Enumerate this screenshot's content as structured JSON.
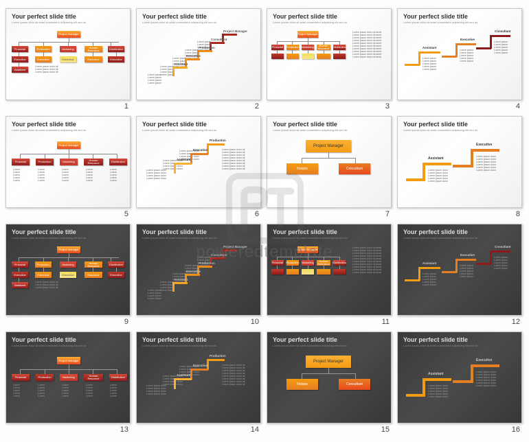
{
  "title": "Your perfect slide title",
  "subtitle": "Lorem ipsum dolor sit amet consectetur adipiscing elit sed do",
  "lorem": "Lorem ipsum dolor sit amet consectetur adipiscing elit sed do eiusmod tempor incididunt ut labore",
  "watermark": "poweredtemplate",
  "colors": {
    "orange": "#f39c12",
    "orange_dark": "#e67e22",
    "orange_grad_a": "#fbb034",
    "orange_grad_b": "#e8491d",
    "red": "#c0392b",
    "red_dark": "#8e1b1b",
    "red_light": "#d94a3a",
    "yellow": "#f1e05a",
    "cream": "#f8e28a"
  },
  "labels": {
    "pm": "Project Manager",
    "exec": "Executive",
    "cons": "Consultant",
    "asst": "Assistant",
    "prod": "Production",
    "notaris": "Notaris",
    "fin": "Financial",
    "mkt": "Marketing",
    "hr": "Human Resource",
    "dist": "Distribution"
  },
  "slides": [
    {
      "n": "1",
      "bg": "light",
      "layout": "org_full"
    },
    {
      "n": "2",
      "bg": "light",
      "layout": "stairs_right"
    },
    {
      "n": "3",
      "bg": "light",
      "layout": "org_text_right"
    },
    {
      "n": "4",
      "bg": "light",
      "layout": "brackets"
    },
    {
      "n": "5",
      "bg": "light",
      "layout": "org_row"
    },
    {
      "n": "6",
      "bg": "light",
      "layout": "stairs_left"
    },
    {
      "n": "7",
      "bg": "light",
      "layout": "big_boxes"
    },
    {
      "n": "8",
      "bg": "light",
      "layout": "brackets_simple"
    },
    {
      "n": "9",
      "bg": "dark",
      "layout": "org_full"
    },
    {
      "n": "10",
      "bg": "dark",
      "layout": "stairs_right"
    },
    {
      "n": "11",
      "bg": "dark",
      "layout": "org_text_right"
    },
    {
      "n": "12",
      "bg": "dark",
      "layout": "brackets"
    },
    {
      "n": "13",
      "bg": "dark",
      "layout": "org_row"
    },
    {
      "n": "14",
      "bg": "dark",
      "layout": "stairs_left"
    },
    {
      "n": "15",
      "bg": "dark",
      "layout": "big_boxes"
    },
    {
      "n": "16",
      "bg": "dark",
      "layout": "brackets_simple"
    }
  ]
}
